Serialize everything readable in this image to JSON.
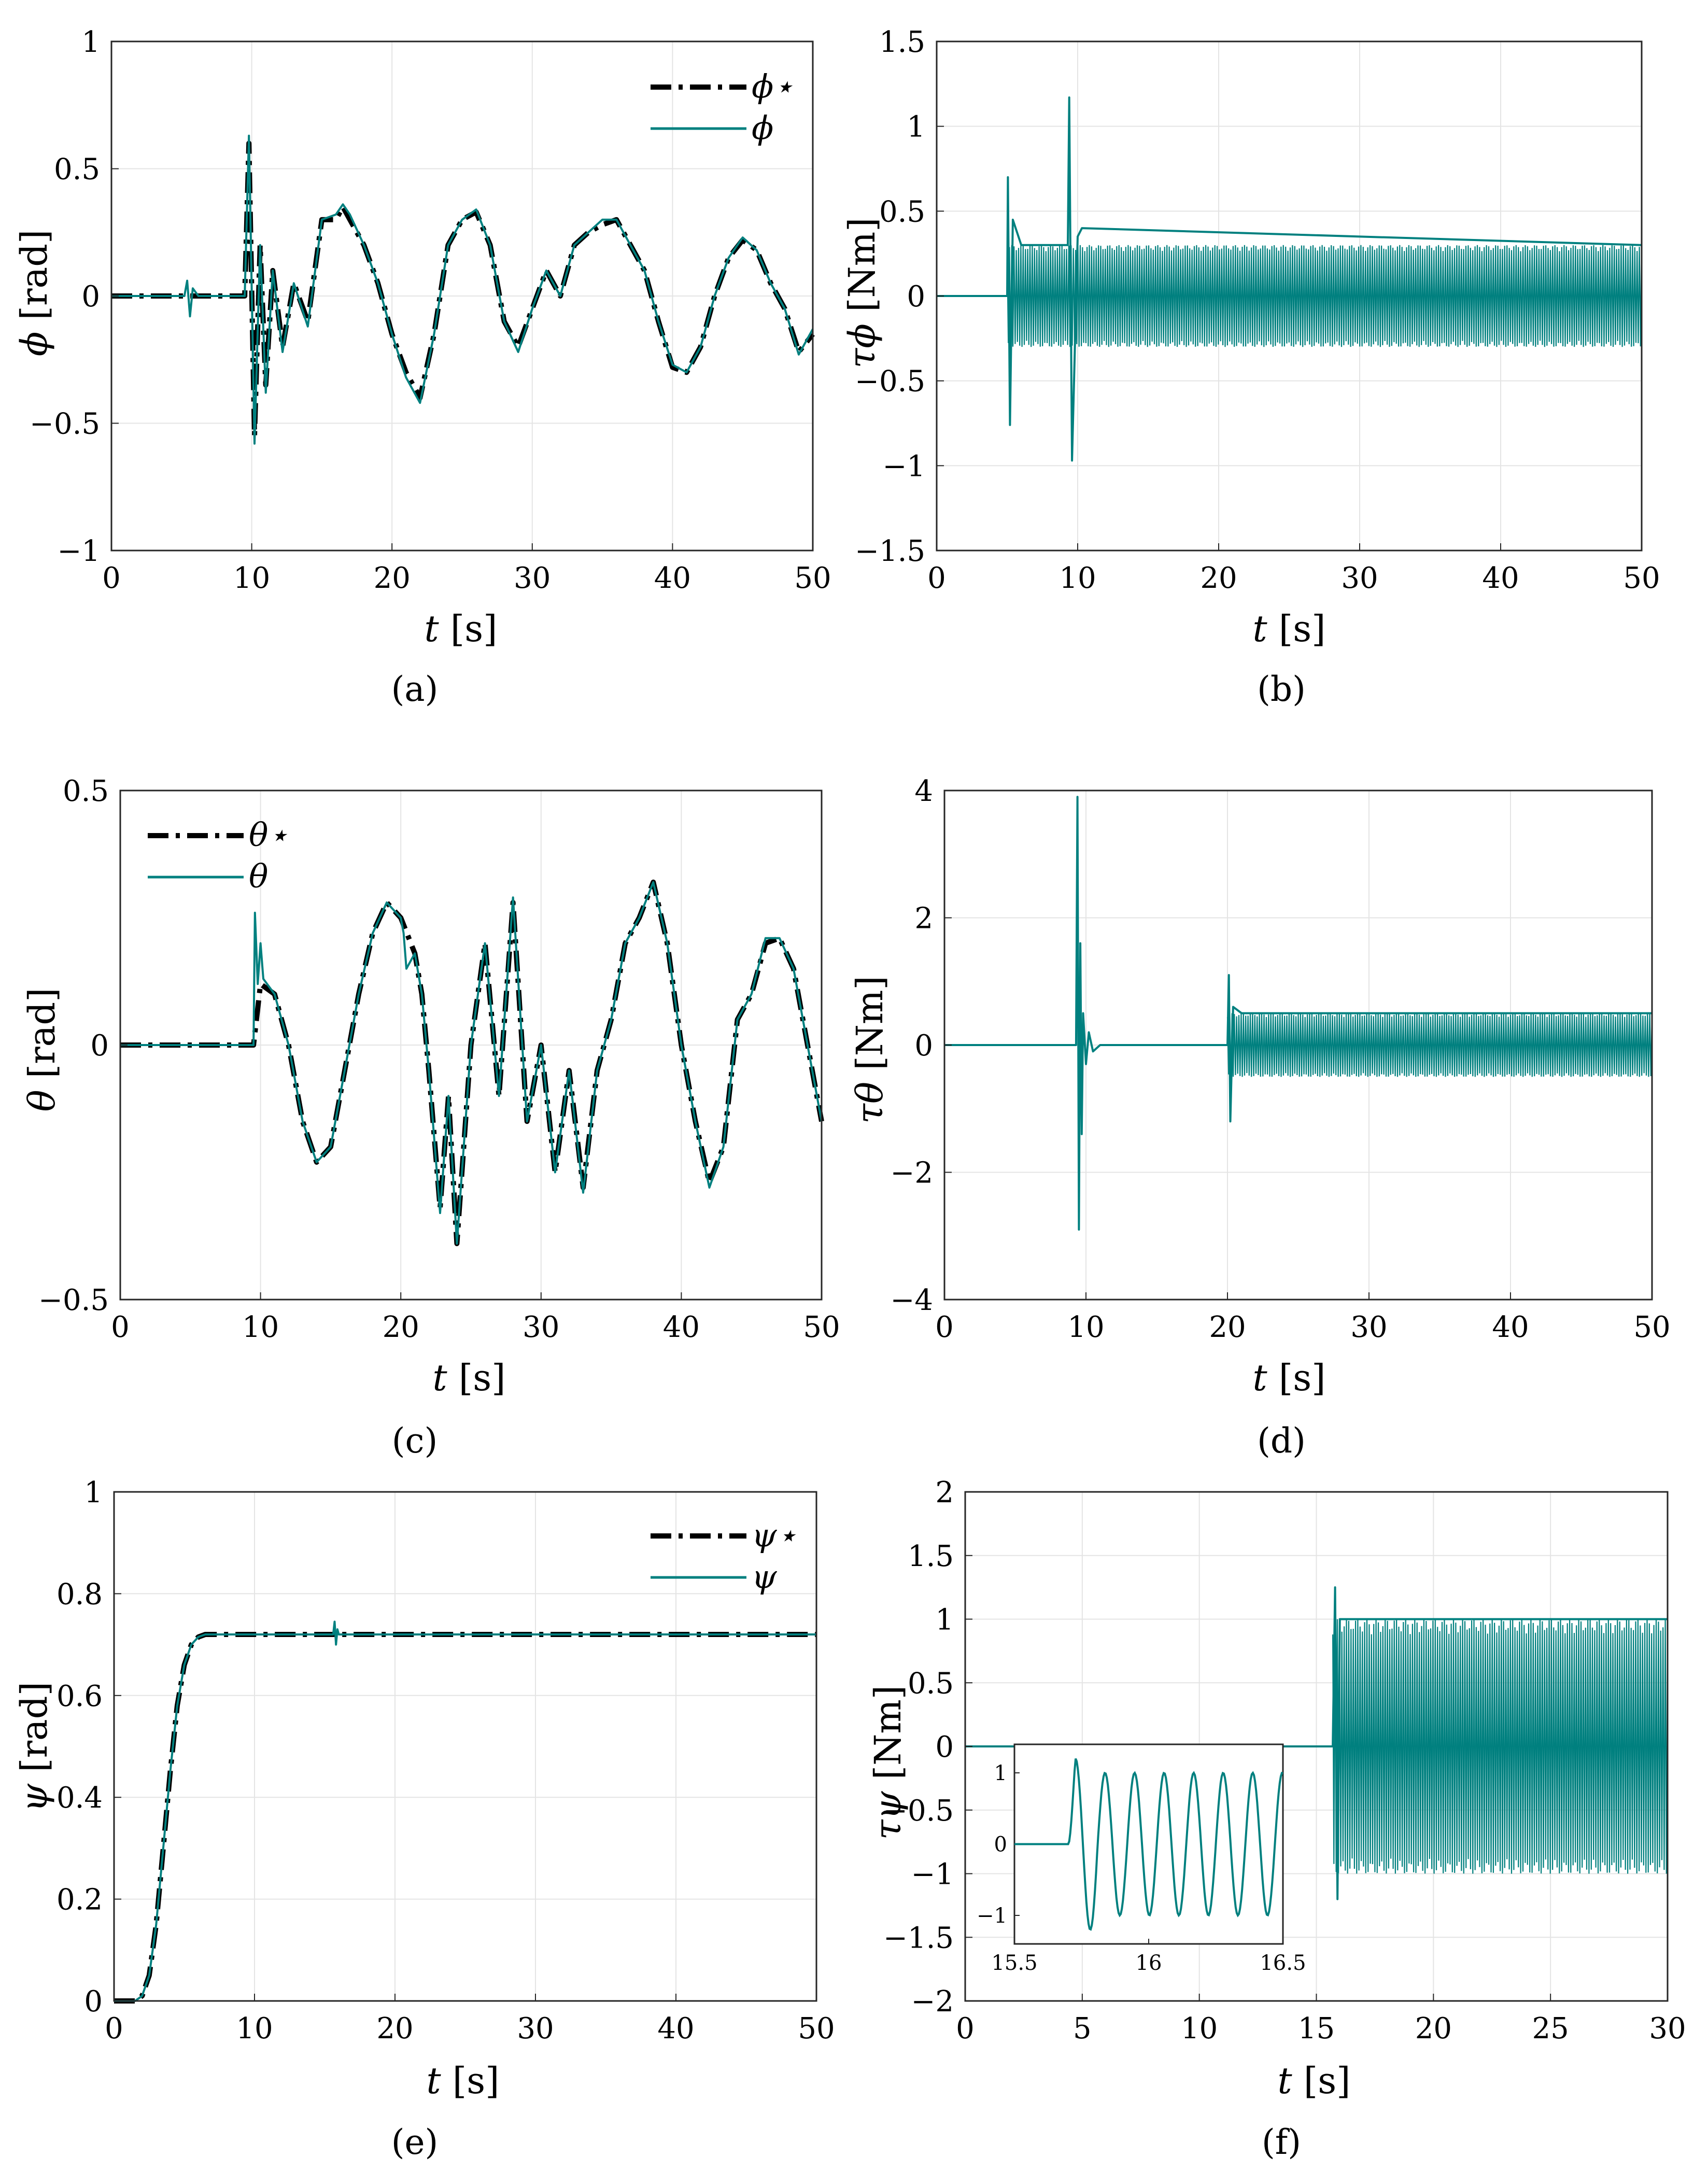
{
  "colors": {
    "teal": "#00807f",
    "ref": "#000000",
    "grid": "#e4e4e4"
  },
  "chart_data": [
    {
      "id": "a",
      "type": "line",
      "caption": "(a)",
      "xlabel": "t",
      "xunit": "[s]",
      "ylabel": "ϕ",
      "yunit": "[rad]",
      "xlim": [
        0,
        50
      ],
      "ylim": [
        -1,
        1
      ],
      "xticks": [
        0,
        10,
        20,
        30,
        40,
        50
      ],
      "xtick_labels": [
        "0",
        "10",
        "20",
        "30",
        "40",
        "50"
      ],
      "yticks": [
        -1,
        -0.5,
        0,
        0.5,
        1
      ],
      "ytick_labels": [
        "−1",
        "−0.5",
        "0",
        "0.5",
        "1"
      ],
      "grid": true,
      "legend_position": "top-right",
      "series": [
        {
          "name": "ϕ⋆",
          "style": "dashdot",
          "color": "#000000",
          "x": [
            0,
            9.5,
            9.8,
            10.2,
            10.6,
            11,
            11.5,
            12.2,
            13,
            14,
            15,
            16,
            16.5,
            17,
            18,
            19,
            20,
            21,
            22,
            23,
            24,
            25,
            26,
            27,
            28,
            29,
            30,
            31,
            32,
            33,
            34,
            35,
            36,
            37,
            38,
            39,
            40,
            41,
            42,
            43,
            44,
            45,
            46,
            47,
            48,
            49,
            50
          ],
          "y": [
            0,
            0,
            0.6,
            -0.55,
            0.2,
            -0.35,
            0.1,
            -0.2,
            0.05,
            -0.1,
            0.3,
            0.3,
            0.35,
            0.3,
            0.2,
            0.05,
            -0.15,
            -0.3,
            -0.4,
            -0.15,
            0.2,
            0.3,
            0.33,
            0.2,
            -0.1,
            -0.2,
            -0.05,
            0.1,
            0.0,
            0.2,
            0.25,
            0.28,
            0.3,
            0.2,
            0.1,
            -0.1,
            -0.28,
            -0.3,
            -0.2,
            0.0,
            0.15,
            0.22,
            0.18,
            0.05,
            -0.05,
            -0.22,
            -0.15
          ]
        },
        {
          "name": "ϕ",
          "style": "solid",
          "color": "#00807f",
          "x": [
            0,
            5.2,
            5.4,
            5.6,
            5.8,
            6.2,
            9.5,
            9.8,
            10.2,
            10.6,
            11,
            11.5,
            12.2,
            13,
            14,
            15,
            16,
            16.5,
            17,
            18,
            19,
            20,
            21,
            22,
            23,
            24,
            25,
            26,
            27,
            28,
            29,
            30,
            31,
            32,
            33,
            34,
            35,
            36,
            37,
            38,
            39,
            40,
            41,
            42,
            43,
            44,
            45,
            46,
            47,
            48,
            49,
            50
          ],
          "y": [
            0,
            0,
            0.06,
            -0.08,
            0.03,
            0,
            0,
            0.63,
            -0.58,
            0.2,
            -0.38,
            0.1,
            -0.22,
            0.05,
            -0.12,
            0.3,
            0.32,
            0.36,
            0.32,
            0.2,
            0.05,
            -0.15,
            -0.32,
            -0.42,
            -0.15,
            0.2,
            0.3,
            0.34,
            0.2,
            -0.1,
            -0.22,
            -0.05,
            0.1,
            0.0,
            0.2,
            0.25,
            0.3,
            0.3,
            0.2,
            0.1,
            -0.1,
            -0.27,
            -0.3,
            -0.2,
            0.0,
            0.15,
            0.23,
            0.18,
            0.05,
            -0.05,
            -0.23,
            -0.13
          ]
        }
      ]
    },
    {
      "id": "b",
      "type": "line",
      "caption": "(b)",
      "xlabel": "t",
      "xunit": "[s]",
      "ylabel": "τϕ",
      "yunit": "[Nm]",
      "xlim": [
        0,
        50
      ],
      "ylim": [
        -1.5,
        1.5
      ],
      "xticks": [
        0,
        10,
        20,
        30,
        40,
        50
      ],
      "xtick_labels": [
        "0",
        "10",
        "20",
        "30",
        "40",
        "50"
      ],
      "yticks": [
        -1.5,
        -1,
        -0.5,
        0,
        0.5,
        1,
        1.5
      ],
      "ytick_labels": [
        "−1.5",
        "−1",
        "−0.5",
        "0",
        "0.5",
        "1",
        "1.5"
      ],
      "grid": true,
      "series": [
        {
          "name": "τϕ",
          "style": "solid",
          "color": "#00807f",
          "x": [
            0,
            5,
            5.05,
            5.2,
            5.4,
            6,
            9.3,
            9.4,
            9.6,
            10,
            10.3,
            50
          ],
          "y": [
            0,
            0,
            0.7,
            -0.76,
            0.45,
            0.3,
            0.3,
            1.17,
            -0.97,
            0.35,
            0.4,
            0.3
          ],
          "band_after": 5,
          "band_amplitude": 0.3
        }
      ]
    },
    {
      "id": "c",
      "type": "line",
      "caption": "(c)",
      "xlabel": "t",
      "xunit": "[s]",
      "ylabel": "θ",
      "yunit": "[rad]",
      "xlim": [
        0,
        50
      ],
      "ylim": [
        -0.5,
        0.5
      ],
      "xticks": [
        0,
        10,
        20,
        30,
        40,
        50
      ],
      "xtick_labels": [
        "0",
        "10",
        "20",
        "30",
        "40",
        "50"
      ],
      "yticks": [
        -0.5,
        0,
        0.5
      ],
      "ytick_labels": [
        "−0.5",
        "0",
        "0.5"
      ],
      "grid": true,
      "legend_position": "top-left",
      "series": [
        {
          "name": "θ⋆",
          "style": "dashdot",
          "color": "#000000",
          "x": [
            0,
            9.5,
            10,
            11,
            12,
            13,
            14,
            15,
            16,
            17,
            18,
            19,
            20,
            21,
            21.5,
            22,
            22.8,
            23.4,
            24,
            25,
            26,
            27,
            28,
            29,
            30,
            31,
            32,
            33,
            34,
            35,
            36,
            37,
            38,
            39,
            40,
            41,
            42,
            43,
            44,
            45,
            46,
            47,
            48,
            49,
            50
          ],
          "y": [
            0,
            0,
            0.12,
            0.1,
            0.0,
            -0.15,
            -0.23,
            -0.2,
            -0.05,
            0.1,
            0.22,
            0.28,
            0.25,
            0.18,
            0.1,
            -0.05,
            -0.32,
            -0.1,
            -0.39,
            0.0,
            0.2,
            -0.1,
            0.28,
            -0.15,
            0.0,
            -0.25,
            -0.05,
            -0.28,
            -0.05,
            0.05,
            0.2,
            0.25,
            0.32,
            0.2,
            0.0,
            -0.15,
            -0.27,
            -0.2,
            0.05,
            0.1,
            0.2,
            0.21,
            0.15,
            0.0,
            -0.15
          ]
        },
        {
          "name": "θ",
          "style": "solid",
          "color": "#00807f",
          "x": [
            0,
            9.5,
            9.6,
            9.8,
            10,
            10.2,
            11,
            12,
            13,
            14,
            15,
            16,
            17,
            18,
            19,
            20,
            20.2,
            20.4,
            21,
            21.5,
            22,
            22.8,
            23.4,
            24,
            25,
            26,
            27,
            28,
            29,
            30,
            31,
            32,
            33,
            34,
            35,
            36,
            37,
            38,
            39,
            40,
            41,
            42,
            43,
            44,
            45,
            46,
            47,
            48,
            49,
            50
          ],
          "y": [
            0,
            0,
            0.26,
            0.12,
            0.2,
            0.13,
            0.1,
            0.0,
            -0.15,
            -0.23,
            -0.2,
            -0.05,
            0.1,
            0.22,
            0.28,
            0.25,
            0.22,
            0.15,
            0.18,
            0.1,
            -0.05,
            -0.33,
            -0.1,
            -0.39,
            0.0,
            0.2,
            -0.1,
            0.29,
            -0.15,
            0.0,
            -0.25,
            -0.05,
            -0.29,
            -0.05,
            0.05,
            0.2,
            0.25,
            0.32,
            0.2,
            0.0,
            -0.15,
            -0.28,
            -0.2,
            0.05,
            0.1,
            0.21,
            0.21,
            0.15,
            0.0,
            -0.15
          ]
        }
      ]
    },
    {
      "id": "d",
      "type": "line",
      "caption": "(d)",
      "xlabel": "t",
      "xunit": "[s]",
      "ylabel": "τθ",
      "yunit": "[Nm]",
      "xlim": [
        0,
        50
      ],
      "ylim": [
        -4,
        4
      ],
      "xticks": [
        0,
        10,
        20,
        30,
        40,
        50
      ],
      "xtick_labels": [
        "0",
        "10",
        "20",
        "30",
        "40",
        "50"
      ],
      "yticks": [
        -4,
        -2,
        0,
        2,
        4
      ],
      "ytick_labels": [
        "−4",
        "−2",
        "0",
        "2",
        "4"
      ],
      "grid": true,
      "series": [
        {
          "name": "τθ",
          "style": "solid",
          "color": "#00807f",
          "x": [
            0,
            9.3,
            9.4,
            9.5,
            9.6,
            9.7,
            9.8,
            10,
            10.2,
            10.5,
            11,
            20,
            20.1,
            20.2,
            20.4,
            21,
            50
          ],
          "y": [
            0,
            0,
            3.9,
            -2.9,
            1.6,
            -1.4,
            0.5,
            -0.3,
            0.2,
            -0.1,
            0,
            0,
            1.1,
            -1.2,
            0.6,
            0.5,
            0.5
          ],
          "band_after": 20,
          "band_amplitude": 0.5
        }
      ]
    },
    {
      "id": "e",
      "type": "line",
      "caption": "(e)",
      "xlabel": "t",
      "xunit": "[s]",
      "ylabel": "ψ",
      "yunit": "[rad]",
      "xlim": [
        0,
        50
      ],
      "ylim": [
        0,
        1
      ],
      "xticks": [
        0,
        10,
        20,
        30,
        40,
        50
      ],
      "xtick_labels": [
        "0",
        "10",
        "20",
        "30",
        "40",
        "50"
      ],
      "yticks": [
        0,
        0.2,
        0.4,
        0.6,
        0.8,
        1
      ],
      "ytick_labels": [
        "0",
        "0.2",
        "0.4",
        "0.6",
        "0.8",
        "1"
      ],
      "grid": true,
      "legend_position": "top-right",
      "series": [
        {
          "name": "ψ⋆",
          "style": "dashdot",
          "color": "#000000",
          "x": [
            0,
            1.5,
            2,
            2.5,
            3,
            3.5,
            4,
            4.5,
            5,
            5.5,
            6,
            6.5,
            7,
            50
          ],
          "y": [
            0,
            0,
            0.01,
            0.05,
            0.15,
            0.3,
            0.45,
            0.58,
            0.66,
            0.7,
            0.715,
            0.72,
            0.72,
            0.72
          ]
        },
        {
          "name": "ψ",
          "style": "solid",
          "color": "#00807f",
          "x": [
            0,
            1.5,
            2,
            2.5,
            3,
            3.5,
            4,
            4.5,
            5,
            5.5,
            6,
            6.5,
            7,
            15.6,
            15.7,
            15.8,
            15.9,
            16,
            50
          ],
          "y": [
            0,
            0,
            0.01,
            0.05,
            0.15,
            0.3,
            0.45,
            0.58,
            0.66,
            0.7,
            0.715,
            0.72,
            0.72,
            0.72,
            0.745,
            0.7,
            0.73,
            0.72,
            0.72
          ]
        }
      ]
    },
    {
      "id": "f",
      "type": "line",
      "caption": "(f)",
      "xlabel": "t",
      "xunit": "[s]",
      "ylabel": "τψ",
      "yunit": "[Nm]",
      "xlim": [
        0,
        30
      ],
      "ylim": [
        -2,
        2
      ],
      "xticks": [
        0,
        5,
        10,
        15,
        20,
        25,
        30
      ],
      "xtick_labels": [
        "0",
        "5",
        "10",
        "15",
        "20",
        "25",
        "30"
      ],
      "yticks": [
        -2,
        -1.5,
        -1,
        -0.5,
        0,
        0.5,
        1,
        1.5,
        2
      ],
      "ytick_labels": [
        "−2",
        "−1.5",
        "−1",
        "−0.5",
        "0",
        "0.5",
        "1",
        "1.5",
        "2"
      ],
      "grid": true,
      "series": [
        {
          "name": "τψ",
          "style": "solid",
          "color": "#00807f",
          "x": [
            0,
            15.7,
            15.8,
            15.9,
            16,
            30
          ],
          "y": [
            0,
            0,
            1.25,
            -1.2,
            1.0,
            1.0
          ],
          "band_after": 15.7,
          "band_amplitude": 1.0
        }
      ],
      "inset": {
        "xlim": [
          15.5,
          16.5
        ],
        "ylim": [
          -1.4,
          1.4
        ],
        "xticks": [
          15.5,
          16,
          16.5
        ],
        "xtick_labels": [
          "15.5",
          "16",
          "16.5"
        ],
        "yticks": [
          -1,
          0,
          1
        ],
        "ytick_labels": [
          "−1",
          "0",
          "1"
        ],
        "series": {
          "color": "#00807f",
          "onset": 15.7,
          "period": 0.11,
          "peak": 1.2,
          "amplitude": 1.0,
          "trough": -1.2
        }
      }
    }
  ]
}
